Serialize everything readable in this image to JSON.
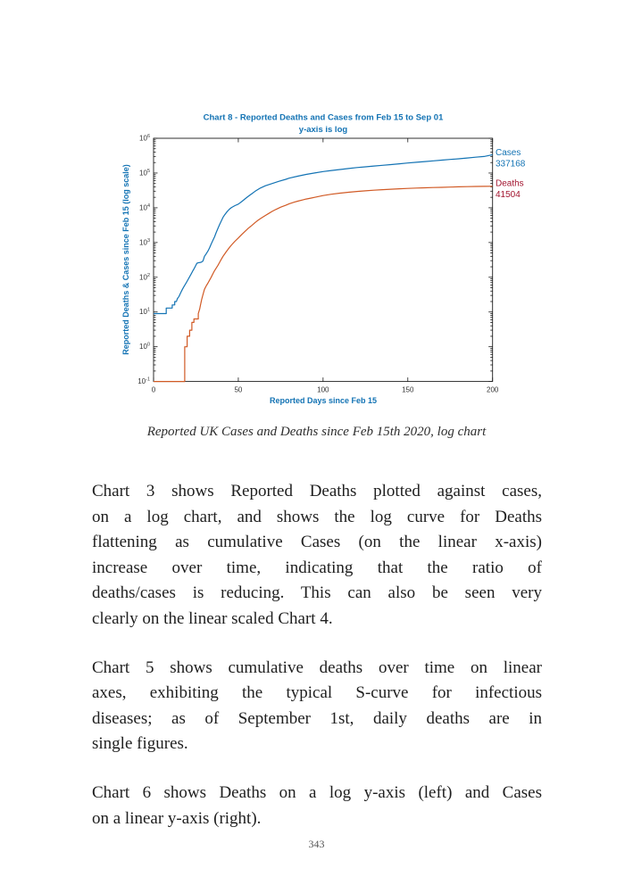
{
  "page": {
    "number": "343"
  },
  "figure_caption": "Reported UK Cases and Deaths since Feb 15th 2020, log chart",
  "chart_data": {
    "type": "line",
    "title": "Chart 8 - Reported Deaths and Cases from Feb 15 to Sep 01",
    "subtitle": "y-axis is log",
    "xlabel": "Reported Days since Feb 15",
    "ylabel": "Reported Deaths & Cases since Feb 15 (log scale)",
    "xlim": [
      0,
      200
    ],
    "ylim_log10": [
      -1,
      6
    ],
    "x_ticks": [
      0,
      50,
      100,
      150,
      200
    ],
    "y_tick_exponents": [
      6,
      5,
      4,
      3,
      2,
      1,
      0,
      -1
    ],
    "grid": false,
    "legend_position": "right-annotations",
    "title_color": "#1373b4",
    "axis_color": "#1a1a1a",
    "tick_label_color": "#333333",
    "series": [
      {
        "name": "Cases",
        "color": "#1373b4",
        "final_value": 337168,
        "points": [
          [
            0,
            9
          ],
          [
            7.5,
            9
          ],
          [
            7.5,
            13
          ],
          [
            11,
            13
          ],
          [
            11,
            16
          ],
          [
            12.5,
            16
          ],
          [
            12.5,
            20
          ],
          [
            13.5,
            20
          ],
          [
            14,
            24
          ],
          [
            15,
            28
          ],
          [
            16,
            36
          ],
          [
            17,
            45
          ],
          [
            18,
            55
          ],
          [
            19,
            66
          ],
          [
            20,
            80
          ],
          [
            21,
            98
          ],
          [
            22,
            120
          ],
          [
            23,
            148
          ],
          [
            24,
            180
          ],
          [
            25,
            225
          ],
          [
            25.5,
            250
          ],
          [
            26,
            258
          ],
          [
            28,
            270
          ],
          [
            29,
            288
          ],
          [
            29.5,
            330
          ],
          [
            30,
            400
          ],
          [
            31,
            470
          ],
          [
            32,
            560
          ],
          [
            33,
            700
          ],
          [
            34,
            900
          ],
          [
            35,
            1150
          ],
          [
            36,
            1450
          ],
          [
            37,
            1950
          ],
          [
            38,
            2550
          ],
          [
            39,
            3300
          ],
          [
            40,
            4200
          ],
          [
            41,
            5300
          ],
          [
            42,
            6300
          ],
          [
            43,
            7300
          ],
          [
            44,
            8300
          ],
          [
            45,
            9300
          ],
          [
            46,
            10200
          ],
          [
            48,
            11500
          ],
          [
            50,
            12700
          ],
          [
            52,
            15000
          ],
          [
            54,
            18000
          ],
          [
            56,
            21500
          ],
          [
            58,
            25500
          ],
          [
            60,
            30000
          ],
          [
            63,
            37000
          ],
          [
            66,
            43000
          ],
          [
            70,
            50000
          ],
          [
            74,
            58000
          ],
          [
            78,
            66000
          ],
          [
            80,
            71000
          ],
          [
            85,
            81000
          ],
          [
            90,
            91000
          ],
          [
            95,
            100000
          ],
          [
            100,
            110000
          ],
          [
            105,
            118000
          ],
          [
            110,
            126000
          ],
          [
            115,
            135000
          ],
          [
            120,
            144000
          ],
          [
            125,
            151000
          ],
          [
            130,
            159000
          ],
          [
            135,
            167000
          ],
          [
            140,
            175000
          ],
          [
            145,
            184000
          ],
          [
            150,
            194000
          ],
          [
            155,
            204000
          ],
          [
            160,
            214000
          ],
          [
            165,
            224000
          ],
          [
            170,
            235000
          ],
          [
            175,
            246000
          ],
          [
            180,
            257000
          ],
          [
            185,
            271000
          ],
          [
            190,
            285000
          ],
          [
            195,
            300000
          ],
          [
            200,
            337168
          ]
        ]
      },
      {
        "name": "Deaths",
        "color": "#d15a25",
        "final_value": 41504,
        "points": [
          [
            0,
            0.1
          ],
          [
            18.4,
            0.1
          ],
          [
            18.4,
            1
          ],
          [
            19.8,
            1
          ],
          [
            19.8,
            2
          ],
          [
            21.3,
            2
          ],
          [
            21.3,
            3
          ],
          [
            22.6,
            3
          ],
          [
            22.6,
            5
          ],
          [
            23.8,
            5
          ],
          [
            23.8,
            6.3
          ],
          [
            26.4,
            6.3
          ],
          [
            26.4,
            9
          ],
          [
            27.2,
            12
          ],
          [
            27.8,
            17
          ],
          [
            28.4,
            23
          ],
          [
            29,
            30
          ],
          [
            30,
            45
          ],
          [
            31,
            56
          ],
          [
            32,
            67
          ],
          [
            33,
            82
          ],
          [
            34,
            100
          ],
          [
            35,
            125
          ],
          [
            36,
            155
          ],
          [
            37,
            185
          ],
          [
            38,
            220
          ],
          [
            39,
            270
          ],
          [
            40,
            330
          ],
          [
            41,
            400
          ],
          [
            42,
            470
          ],
          [
            43,
            550
          ],
          [
            44,
            640
          ],
          [
            45,
            740
          ],
          [
            46,
            850
          ],
          [
            48,
            1080
          ],
          [
            50,
            1350
          ],
          [
            52,
            1700
          ],
          [
            54,
            2100
          ],
          [
            56,
            2600
          ],
          [
            58,
            3100
          ],
          [
            60,
            3800
          ],
          [
            62,
            4500
          ],
          [
            64,
            5200
          ],
          [
            66,
            6000
          ],
          [
            68,
            6900
          ],
          [
            70,
            7900
          ],
          [
            72,
            8900
          ],
          [
            75,
            10400
          ],
          [
            78,
            11800
          ],
          [
            80,
            13000
          ],
          [
            83,
            14500
          ],
          [
            85,
            15500
          ],
          [
            88,
            16800
          ],
          [
            90,
            17800
          ],
          [
            93,
            19000
          ],
          [
            95,
            20000
          ],
          [
            100,
            22400
          ],
          [
            105,
            24500
          ],
          [
            110,
            26300
          ],
          [
            115,
            28000
          ],
          [
            120,
            29500
          ],
          [
            125,
            30800
          ],
          [
            130,
            32000
          ],
          [
            135,
            33100
          ],
          [
            140,
            34100
          ],
          [
            145,
            35100
          ],
          [
            150,
            36000
          ],
          [
            155,
            36800
          ],
          [
            160,
            37500
          ],
          [
            165,
            38200
          ],
          [
            170,
            38800
          ],
          [
            175,
            39400
          ],
          [
            180,
            40000
          ],
          [
            185,
            40500
          ],
          [
            190,
            41000
          ],
          [
            195,
            41300
          ],
          [
            200,
            41504
          ]
        ]
      }
    ],
    "annotations": [
      {
        "label": "Cases",
        "value": "337168",
        "color": "#1373b4"
      },
      {
        "label": "Deaths",
        "value": "41504",
        "color": "#a2142f"
      }
    ]
  },
  "body": {
    "paragraphs": [
      {
        "lines": [
          "Chart 3 shows Reported Deaths plotted against cases,",
          "on a log chart, and shows the log curve for Deaths",
          "flattening as cumulative Cases (on the linear x-axis)",
          "increase over time, indicating that the ratio of",
          "deaths/cases is reducing. This can also be seen very",
          "clearly on the linear scaled Chart 4."
        ]
      },
      {
        "lines": [
          "Chart 5 shows cumulative deaths over time on linear",
          "axes, exhibiting the typical S-curve for infectious",
          "diseases; as of September 1st, daily deaths are in",
          "single figures."
        ]
      },
      {
        "lines": [
          "Chart 6 shows Deaths on a log y-axis (left) and Cases",
          "on a linear y-axis (right)."
        ]
      }
    ]
  }
}
